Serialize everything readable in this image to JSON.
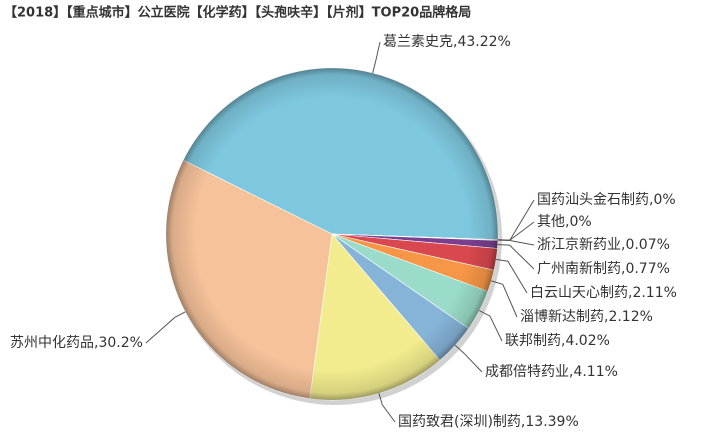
{
  "chart_data": {
    "type": "pie",
    "title": "【2018】【重点城市】公立医院【化学药】【头孢呋辛】【片剂】TOP20品牌格局",
    "labels": [
      "葛兰素史克,43.22%",
      "国药汕头金石制药,0%",
      "其他,0%",
      "浙江京新药业,0.07%",
      "广州南新制药,0.77%",
      "白云山天心制药,2.11%",
      "淄博新达制药,2.12%",
      "联邦制药,4.02%",
      "成都倍特药业,4.11%",
      "国药致君(深圳)制药,13.39%",
      "苏州中化药品,30.2%"
    ],
    "values": [
      43.22,
      0,
      0,
      0.07,
      0.77,
      2.11,
      2.12,
      4.02,
      4.11,
      13.39,
      30.2
    ],
    "colors": [
      "#7ec8df",
      "#4f81bd",
      "#c0504d",
      "#4e7a2a",
      "#7b3f8e",
      "#d9484f",
      "#f79646",
      "#9adcc9",
      "#86b4d9",
      "#f2ec8e",
      "#f6c29a"
    ]
  }
}
